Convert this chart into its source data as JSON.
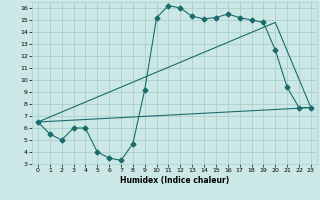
{
  "bg_color": "#cce8e6",
  "line_color": "#1a6b6b",
  "grid_color": "#aacfcd",
  "xlabel": "Humidex (Indice chaleur)",
  "xlim": [
    -0.5,
    23.5
  ],
  "ylim": [
    3,
    16.5
  ],
  "xticks": [
    0,
    1,
    2,
    3,
    4,
    5,
    6,
    7,
    8,
    9,
    10,
    11,
    12,
    13,
    14,
    15,
    16,
    17,
    18,
    19,
    20,
    21,
    22,
    23
  ],
  "yticks": [
    3,
    4,
    5,
    6,
    7,
    8,
    9,
    10,
    11,
    12,
    13,
    14,
    15,
    16
  ],
  "line1_x": [
    0,
    1,
    2,
    3,
    4,
    5,
    6,
    7,
    8,
    9,
    10,
    11,
    12,
    13,
    14,
    15,
    16,
    17,
    18,
    19,
    20,
    21,
    22,
    23
  ],
  "line1_y": [
    6.5,
    5.5,
    5.0,
    6.0,
    6.0,
    4.0,
    3.5,
    3.3,
    4.7,
    9.2,
    15.2,
    16.2,
    16.0,
    15.3,
    15.1,
    15.2,
    15.5,
    15.2,
    15.0,
    14.8,
    12.5,
    9.4,
    7.7,
    7.7
  ],
  "line2_x": [
    0,
    23
  ],
  "line2_y": [
    6.5,
    7.7
  ],
  "line3_x": [
    0,
    20,
    23
  ],
  "line3_y": [
    6.5,
    14.8,
    7.7
  ],
  "markersize": 2.5
}
